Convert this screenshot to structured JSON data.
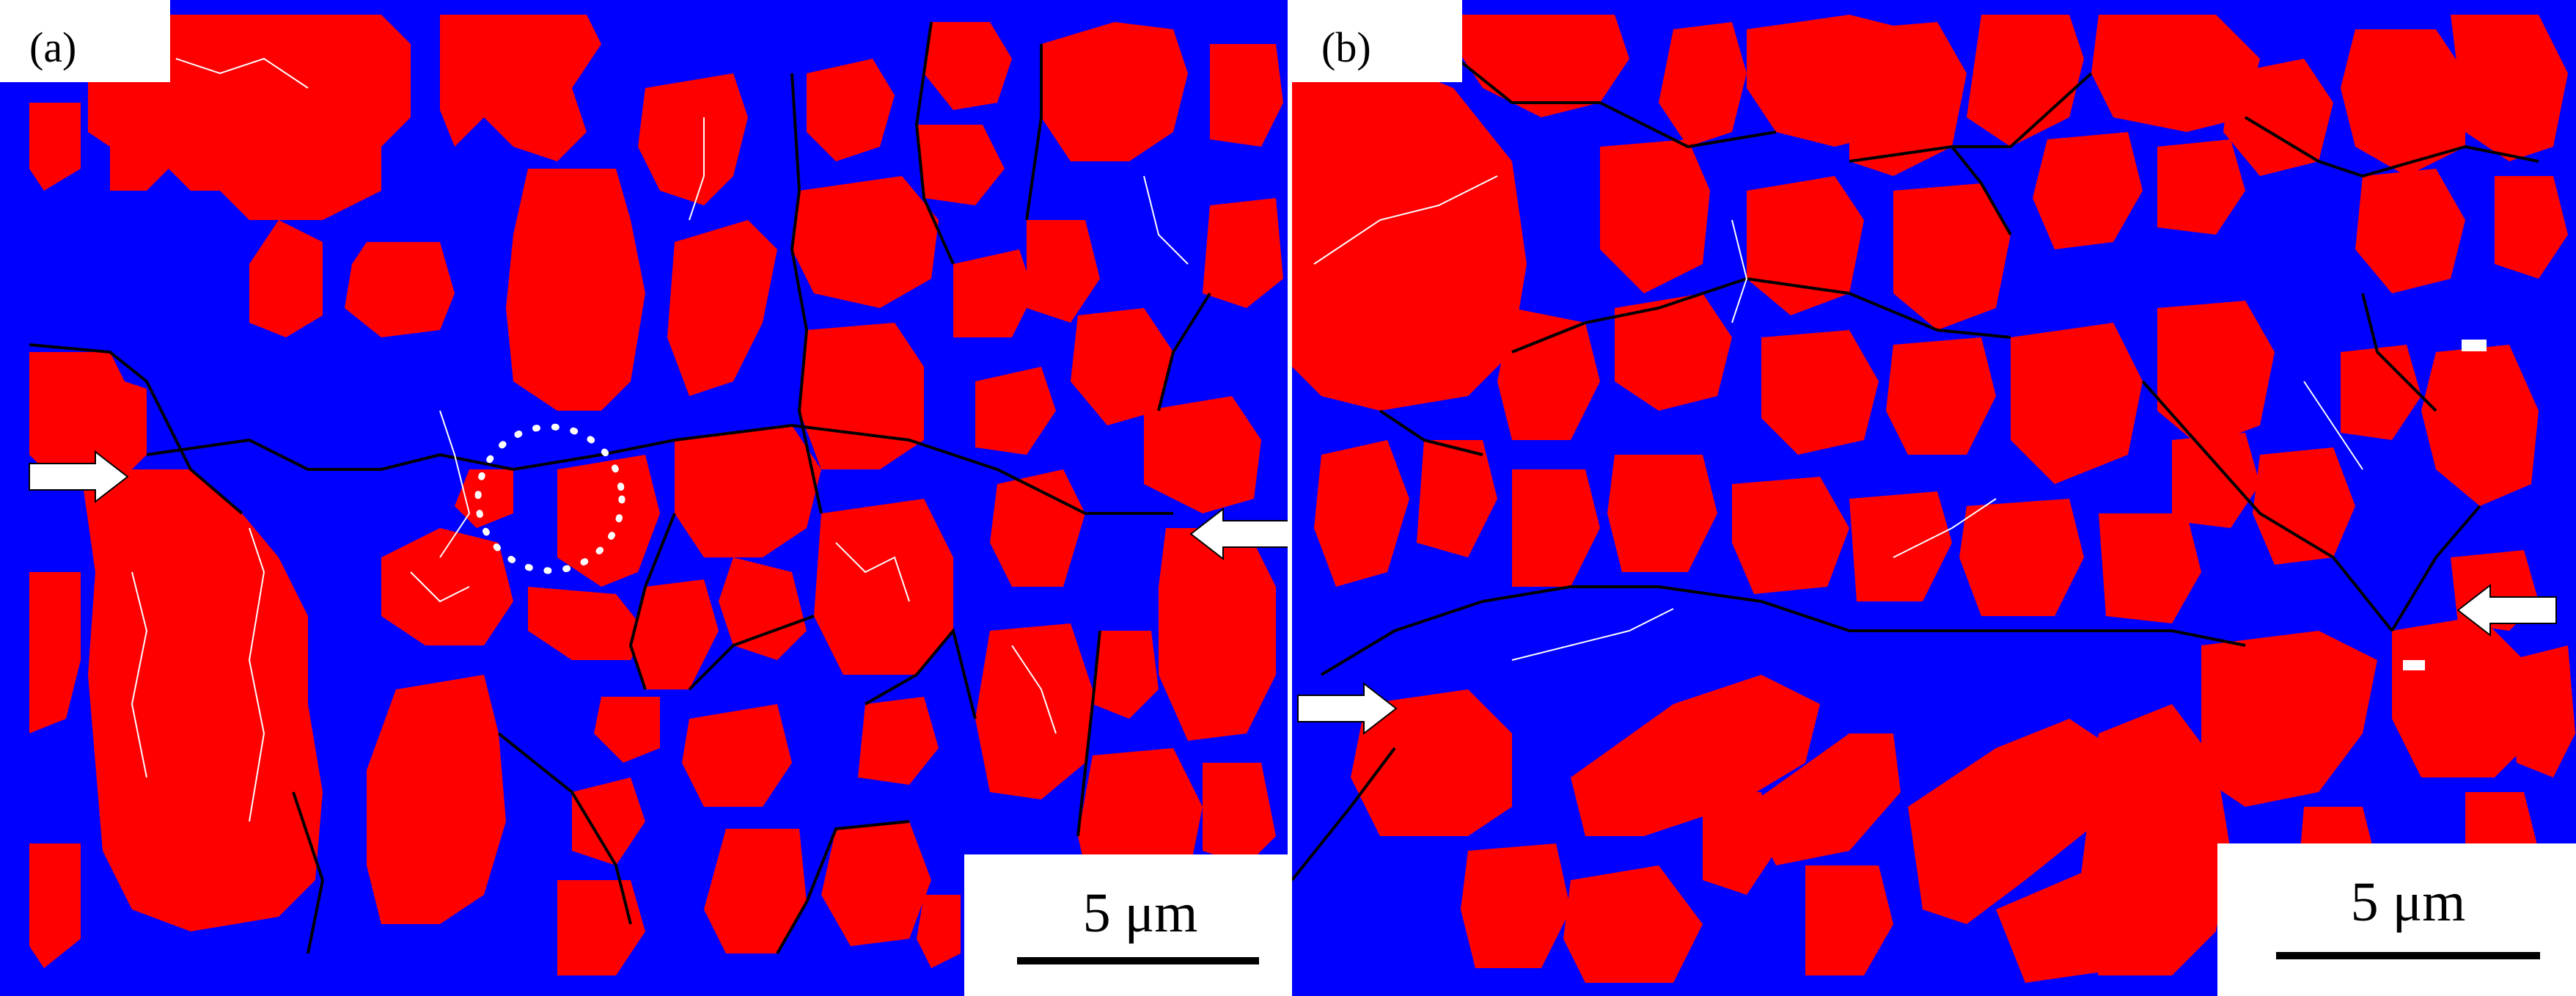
{
  "figure": {
    "panels": [
      {
        "label": "(a)",
        "scale_text": "5 μm"
      },
      {
        "label": "(b)",
        "scale_text": "5 μm"
      }
    ],
    "colors": {
      "phase_red": "#ff0000",
      "phase_blue": "#0000ff",
      "high_angle_boundary": "#000000",
      "low_angle_boundary": "#ffffff",
      "markers": "#ffffff"
    }
  }
}
